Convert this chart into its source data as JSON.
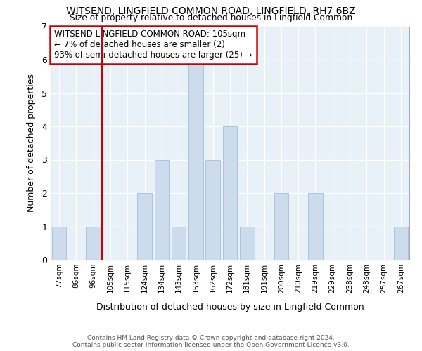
{
  "title1": "WITSEND, LINGFIELD COMMON ROAD, LINGFIELD, RH7 6BZ",
  "title2": "Size of property relative to detached houses in Lingfield Common",
  "xlabel": "Distribution of detached houses by size in Lingfield Common",
  "ylabel": "Number of detached properties",
  "bin_labels": [
    "77sqm",
    "86sqm",
    "96sqm",
    "105sqm",
    "115sqm",
    "124sqm",
    "134sqm",
    "143sqm",
    "153sqm",
    "162sqm",
    "172sqm",
    "181sqm",
    "191sqm",
    "200sqm",
    "210sqm",
    "219sqm",
    "229sqm",
    "238sqm",
    "248sqm",
    "257sqm",
    "267sqm"
  ],
  "bar_heights": [
    1,
    0,
    1,
    0,
    0,
    2,
    3,
    1,
    6,
    3,
    4,
    1,
    0,
    2,
    0,
    2,
    0,
    0,
    0,
    0,
    1
  ],
  "bar_color": "#ccdcec",
  "bar_edgecolor": "#aac4dc",
  "highlight_index": 3,
  "highlight_color": "#cc0000",
  "annotation_title": "WITSEND LINGFIELD COMMON ROAD: 105sqm",
  "annotation_line1": "← 7% of detached houses are smaller (2)",
  "annotation_line2": "93% of semi-detached houses are larger (25) →",
  "annotation_box_color": "#cc0000",
  "plot_bg_color": "#e8f0f8",
  "ylim": [
    0,
    7
  ],
  "yticks": [
    0,
    1,
    2,
    3,
    4,
    5,
    6,
    7
  ],
  "footer1": "Contains HM Land Registry data © Crown copyright and database right 2024.",
  "footer2": "Contains public sector information licensed under the Open Government Licence v3.0."
}
